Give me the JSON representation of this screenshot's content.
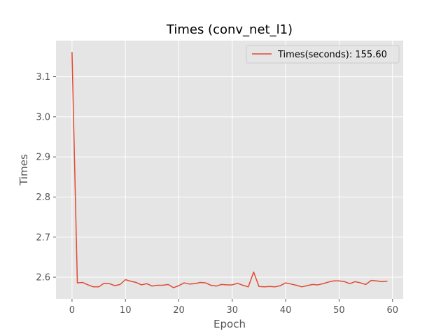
{
  "chart_data": {
    "type": "line",
    "title": "Times (conv_net_l1)",
    "xlabel": "Epoch",
    "ylabel": "Times",
    "xlim": [
      -3.0,
      62.0
    ],
    "ylim": [
      2.546,
      3.19
    ],
    "xticks": [
      0,
      10,
      20,
      30,
      40,
      50,
      60
    ],
    "yticks": [
      2.6,
      2.7,
      2.8,
      2.9,
      3.0,
      3.1
    ],
    "ytick_labels": [
      "2.6",
      "2.7",
      "2.8",
      "2.9",
      "3.0",
      "3.1"
    ],
    "grid": true,
    "legend_position": "top-right",
    "background_color": "#e5e5e5",
    "series": [
      {
        "name": "Times(seconds): 155.60",
        "color": "#e24a33",
        "x": [
          0,
          1,
          2,
          3,
          4,
          5,
          6,
          7,
          8,
          9,
          10,
          11,
          12,
          13,
          14,
          15,
          16,
          17,
          18,
          19,
          20,
          21,
          22,
          23,
          24,
          25,
          26,
          27,
          28,
          29,
          30,
          31,
          32,
          33,
          34,
          35,
          36,
          37,
          38,
          39,
          40,
          41,
          42,
          43,
          44,
          45,
          46,
          47,
          48,
          49,
          50,
          51,
          52,
          53,
          54,
          55,
          56,
          57,
          58,
          59
        ],
        "values": [
          3.161,
          2.586,
          2.587,
          2.581,
          2.576,
          2.576,
          2.585,
          2.584,
          2.579,
          2.582,
          2.594,
          2.59,
          2.587,
          2.581,
          2.584,
          2.578,
          2.58,
          2.58,
          2.582,
          2.574,
          2.579,
          2.586,
          2.583,
          2.584,
          2.587,
          2.586,
          2.58,
          2.578,
          2.582,
          2.581,
          2.581,
          2.585,
          2.58,
          2.576,
          2.613,
          2.577,
          2.576,
          2.577,
          2.576,
          2.579,
          2.586,
          2.583,
          2.58,
          2.576,
          2.579,
          2.582,
          2.581,
          2.584,
          2.588,
          2.591,
          2.591,
          2.589,
          2.584,
          2.589,
          2.586,
          2.582,
          2.592,
          2.591,
          2.589,
          2.59
        ]
      }
    ]
  }
}
